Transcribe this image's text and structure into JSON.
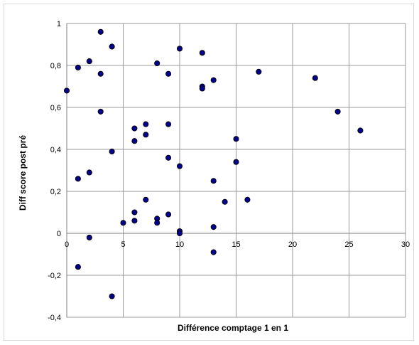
{
  "chart_data": {
    "type": "scatter",
    "title": "",
    "xlabel": "Différence comptage 1 en 1",
    "ylabel": "Diff score post pré",
    "xlim": [
      0,
      30
    ],
    "ylim": [
      -0.4,
      1
    ],
    "x_ticks": [
      0,
      5,
      10,
      15,
      20,
      25,
      30
    ],
    "y_ticks": [
      -0.4,
      -0.2,
      0,
      0.2,
      0.4,
      0.6,
      0.8,
      1
    ],
    "x_tick_labels": [
      "0",
      "5",
      "10",
      "15",
      "20",
      "25",
      "30"
    ],
    "y_tick_labels": [
      "-0,4",
      "-0,2",
      "0",
      "0,2",
      "0,4",
      "0,6",
      "0,8",
      "1"
    ],
    "grid": true,
    "marker_color": "#00008b",
    "marker_edge": "#000000",
    "series": [
      {
        "points": [
          [
            0,
            0.68
          ],
          [
            1,
            0.79
          ],
          [
            1,
            0.26
          ],
          [
            1,
            -0.16
          ],
          [
            2,
            0.82
          ],
          [
            2,
            0.29
          ],
          [
            2,
            -0.02
          ],
          [
            3,
            0.96
          ],
          [
            3,
            0.76
          ],
          [
            3,
            0.58
          ],
          [
            4,
            0.89
          ],
          [
            4,
            0.39
          ],
          [
            4,
            -0.3
          ],
          [
            5,
            0.05
          ],
          [
            6,
            0.5
          ],
          [
            6,
            0.44
          ],
          [
            6,
            0.1
          ],
          [
            6,
            0.06
          ],
          [
            7,
            0.52
          ],
          [
            7,
            0.47
          ],
          [
            7,
            0.16
          ],
          [
            8,
            0.81
          ],
          [
            8,
            0.07
          ],
          [
            8,
            0.05
          ],
          [
            9,
            0.76
          ],
          [
            9,
            0.52
          ],
          [
            9,
            0.36
          ],
          [
            9,
            0.09
          ],
          [
            10,
            0.88
          ],
          [
            10,
            0.32
          ],
          [
            10,
            0.01
          ],
          [
            10,
            0.0
          ],
          [
            12,
            0.86
          ],
          [
            12,
            0.7
          ],
          [
            12,
            0.69
          ],
          [
            13,
            0.73
          ],
          [
            13,
            0.25
          ],
          [
            13,
            0.03
          ],
          [
            13,
            -0.09
          ],
          [
            14,
            0.15
          ],
          [
            15,
            0.45
          ],
          [
            15,
            0.34
          ],
          [
            16,
            0.16
          ],
          [
            17,
            0.77
          ],
          [
            22,
            0.74
          ],
          [
            24,
            0.58
          ],
          [
            26,
            0.49
          ]
        ]
      }
    ]
  }
}
